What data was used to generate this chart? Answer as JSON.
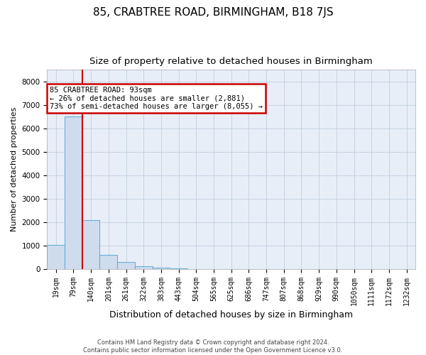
{
  "title": "85, CRABTREE ROAD, BIRMINGHAM, B18 7JS",
  "subtitle": "Size of property relative to detached houses in Birmingham",
  "xlabel": "Distribution of detached houses by size in Birmingham",
  "ylabel": "Number of detached properties",
  "categories": [
    "19sqm",
    "79sqm",
    "140sqm",
    "201sqm",
    "261sqm",
    "322sqm",
    "383sqm",
    "443sqm",
    "504sqm",
    "565sqm",
    "625sqm",
    "686sqm",
    "747sqm",
    "807sqm",
    "868sqm",
    "929sqm",
    "990sqm",
    "1050sqm",
    "1111sqm",
    "1172sqm",
    "1232sqm"
  ],
  "values": [
    1050,
    6500,
    2100,
    600,
    310,
    130,
    70,
    50,
    10,
    5,
    0,
    0,
    0,
    0,
    0,
    0,
    0,
    0,
    0,
    0,
    0
  ],
  "bar_color": "#cfdcee",
  "bar_edge_color": "#6aaed6",
  "red_line_color": "#cc0000",
  "red_line_x": 1.5,
  "annotation_line1": "85 CRABTREE ROAD: 93sqm",
  "annotation_line2": "← 26% of detached houses are smaller (2,881)",
  "annotation_line3": "73% of semi-detached houses are larger (8,055) →",
  "annotation_box_facecolor": "#ffffff",
  "annotation_box_edgecolor": "#cc0000",
  "footer_line1": "Contains HM Land Registry data © Crown copyright and database right 2024.",
  "footer_line2": "Contains public sector information licensed under the Open Government Licence v3.0.",
  "ylim": [
    0,
    8500
  ],
  "yticks": [
    0,
    1000,
    2000,
    3000,
    4000,
    5000,
    6000,
    7000,
    8000
  ],
  "background_color": "#ffffff",
  "plot_bg_color": "#e8eef8",
  "grid_color": "#c0cfe0",
  "title_fontsize": 11,
  "subtitle_fontsize": 9.5,
  "xlabel_fontsize": 9,
  "ylabel_fontsize": 8,
  "tick_fontsize": 7,
  "annotation_fontsize": 7.5,
  "footer_fontsize": 6
}
